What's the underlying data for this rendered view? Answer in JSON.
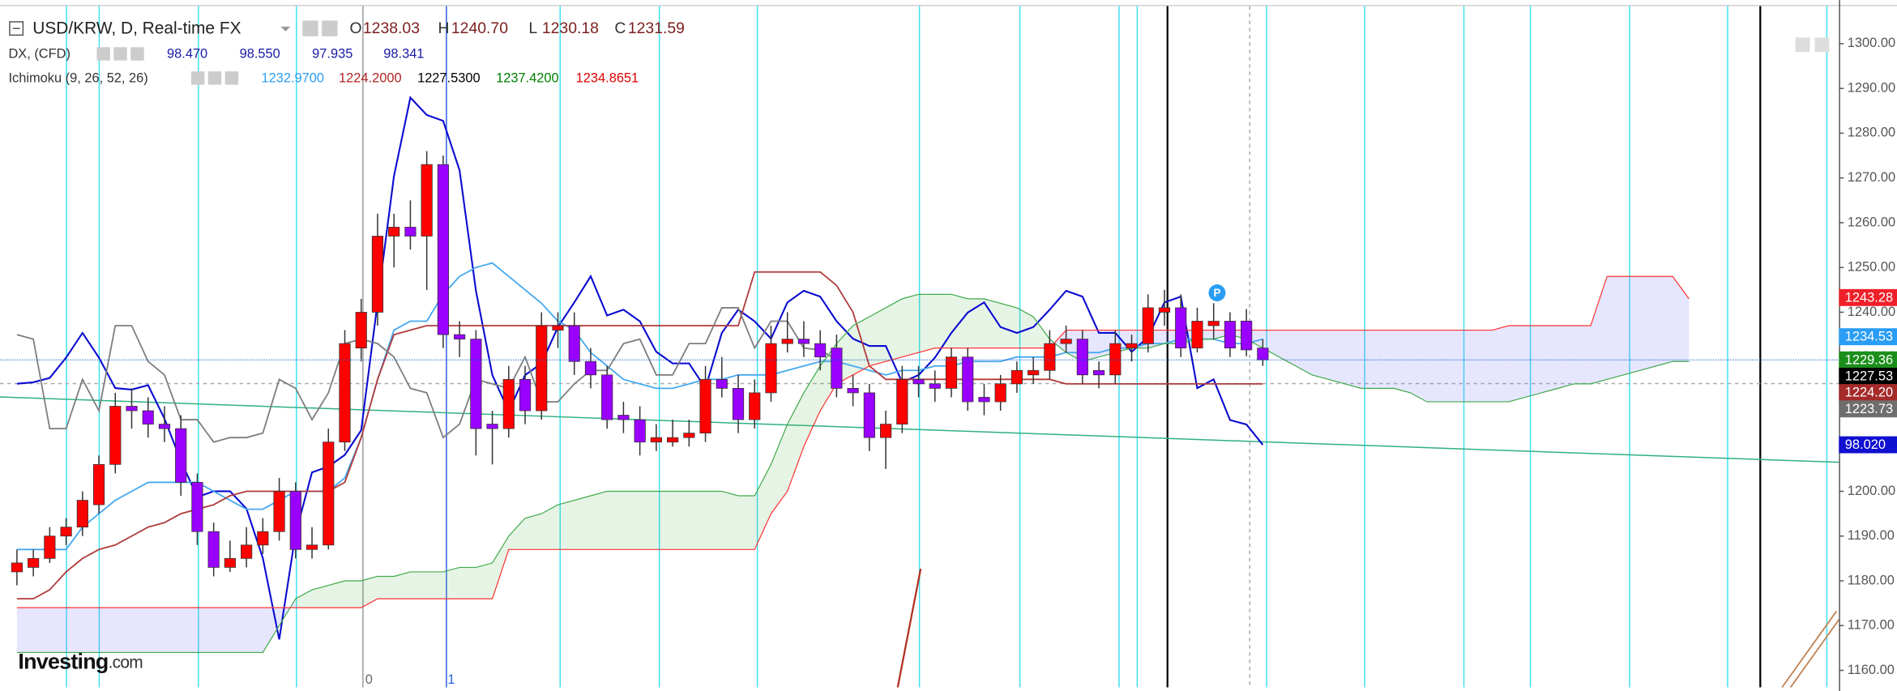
{
  "chart_data": {
    "type": "candlestick",
    "title": "USD/KRW, D, Real-time FX",
    "ohlc_keys": [
      "O",
      "H",
      "L",
      "C"
    ],
    "ohlc_values": [
      "1238.03",
      "1240.70",
      "1230.18",
      "1231.59"
    ],
    "indicators": [
      {
        "name": "DX, (CFD)",
        "values": [
          "98.470",
          "98.550",
          "97.935",
          "98.341"
        ],
        "colors": [
          "#1a1aa6",
          "#1a1aa6",
          "#1a1aa6",
          "#1a1aa6"
        ]
      },
      {
        "name": "Ichimoku (9, 26, 52, 26)",
        "values": [
          "1232.9700",
          "1224.2000",
          "1227.5300",
          "1237.4200",
          "1234.8651"
        ],
        "colors": [
          "#2a9df4",
          "#b22222",
          "#000000",
          "#008000",
          "#e00000"
        ]
      }
    ],
    "up_color": "#ff0000",
    "down_color": "#9900ff",
    "candles": [
      {
        "o": 1182,
        "h": 1187,
        "l": 1179,
        "c": 1184
      },
      {
        "o": 1183,
        "h": 1187,
        "l": 1181,
        "c": 1185
      },
      {
        "o": 1185,
        "h": 1192,
        "l": 1184,
        "c": 1190
      },
      {
        "o": 1190,
        "h": 1194,
        "l": 1188,
        "c": 1192
      },
      {
        "o": 1192,
        "h": 1200,
        "l": 1190,
        "c": 1198
      },
      {
        "o": 1197,
        "h": 1208,
        "l": 1195,
        "c": 1206
      },
      {
        "o": 1206,
        "h": 1222,
        "l": 1204,
        "c": 1219
      },
      {
        "o": 1219,
        "h": 1223,
        "l": 1214,
        "c": 1218
      },
      {
        "o": 1218,
        "h": 1221,
        "l": 1212,
        "c": 1215
      },
      {
        "o": 1215,
        "h": 1219,
        "l": 1211,
        "c": 1214
      },
      {
        "o": 1214,
        "h": 1217,
        "l": 1199,
        "c": 1202
      },
      {
        "o": 1202,
        "h": 1204,
        "l": 1188,
        "c": 1191
      },
      {
        "o": 1191,
        "h": 1193,
        "l": 1181,
        "c": 1183
      },
      {
        "o": 1183,
        "h": 1189,
        "l": 1182,
        "c": 1185
      },
      {
        "o": 1185,
        "h": 1192,
        "l": 1183,
        "c": 1188
      },
      {
        "o": 1188,
        "h": 1194,
        "l": 1186,
        "c": 1191
      },
      {
        "o": 1191,
        "h": 1203,
        "l": 1189,
        "c": 1200
      },
      {
        "o": 1200,
        "h": 1202,
        "l": 1185,
        "c": 1187
      },
      {
        "o": 1187,
        "h": 1192,
        "l": 1185,
        "c": 1188
      },
      {
        "o": 1188,
        "h": 1214,
        "l": 1187,
        "c": 1211
      },
      {
        "o": 1211,
        "h": 1236,
        "l": 1209,
        "c": 1233
      },
      {
        "o": 1232,
        "h": 1243,
        "l": 1229,
        "c": 1240
      },
      {
        "o": 1240,
        "h": 1262,
        "l": 1237,
        "c": 1257
      },
      {
        "o": 1257,
        "h": 1262,
        "l": 1250,
        "c": 1259
      },
      {
        "o": 1259,
        "h": 1265,
        "l": 1254,
        "c": 1257
      },
      {
        "o": 1257,
        "h": 1276,
        "l": 1245,
        "c": 1273
      },
      {
        "o": 1273,
        "h": 1275,
        "l": 1232,
        "c": 1235
      },
      {
        "o": 1235,
        "h": 1238,
        "l": 1230,
        "c": 1234
      },
      {
        "o": 1234,
        "h": 1236,
        "l": 1208,
        "c": 1214
      },
      {
        "o": 1215,
        "h": 1218,
        "l": 1206,
        "c": 1214
      },
      {
        "o": 1214,
        "h": 1228,
        "l": 1212,
        "c": 1225
      },
      {
        "o": 1225,
        "h": 1228,
        "l": 1215,
        "c": 1218
      },
      {
        "o": 1218,
        "h": 1240,
        "l": 1216,
        "c": 1237
      },
      {
        "o": 1236,
        "h": 1240,
        "l": 1232,
        "c": 1237
      },
      {
        "o": 1237,
        "h": 1240,
        "l": 1226,
        "c": 1229
      },
      {
        "o": 1229,
        "h": 1232,
        "l": 1223,
        "c": 1226
      },
      {
        "o": 1226,
        "h": 1228,
        "l": 1214,
        "c": 1216
      },
      {
        "o": 1217,
        "h": 1220,
        "l": 1213,
        "c": 1216
      },
      {
        "o": 1216,
        "h": 1219,
        "l": 1208,
        "c": 1211
      },
      {
        "o": 1211,
        "h": 1215,
        "l": 1209,
        "c": 1212
      },
      {
        "o": 1211,
        "h": 1216,
        "l": 1210,
        "c": 1212
      },
      {
        "o": 1212,
        "h": 1216,
        "l": 1210,
        "c": 1213
      },
      {
        "o": 1213,
        "h": 1228,
        "l": 1211,
        "c": 1225
      },
      {
        "o": 1225,
        "h": 1230,
        "l": 1221,
        "c": 1223
      },
      {
        "o": 1223,
        "h": 1226,
        "l": 1213,
        "c": 1216
      },
      {
        "o": 1216,
        "h": 1225,
        "l": 1214,
        "c": 1222
      },
      {
        "o": 1222,
        "h": 1237,
        "l": 1220,
        "c": 1233
      },
      {
        "o": 1233,
        "h": 1240,
        "l": 1231,
        "c": 1234
      },
      {
        "o": 1234,
        "h": 1238,
        "l": 1230,
        "c": 1233
      },
      {
        "o": 1233,
        "h": 1236,
        "l": 1227,
        "c": 1230
      },
      {
        "o": 1232,
        "h": 1235,
        "l": 1221,
        "c": 1223
      },
      {
        "o": 1223,
        "h": 1226,
        "l": 1219,
        "c": 1222
      },
      {
        "o": 1222,
        "h": 1224,
        "l": 1209,
        "c": 1212
      },
      {
        "o": 1212,
        "h": 1218,
        "l": 1205,
        "c": 1215
      },
      {
        "o": 1215,
        "h": 1228,
        "l": 1213,
        "c": 1225
      },
      {
        "o": 1225,
        "h": 1228,
        "l": 1221,
        "c": 1224
      },
      {
        "o": 1224,
        "h": 1227,
        "l": 1220,
        "c": 1223
      },
      {
        "o": 1223,
        "h": 1232,
        "l": 1221,
        "c": 1230
      },
      {
        "o": 1230,
        "h": 1232,
        "l": 1218,
        "c": 1220
      },
      {
        "o": 1221,
        "h": 1224,
        "l": 1217,
        "c": 1220
      },
      {
        "o": 1220,
        "h": 1226,
        "l": 1218,
        "c": 1224
      },
      {
        "o": 1224,
        "h": 1229,
        "l": 1222,
        "c": 1227
      },
      {
        "o": 1226,
        "h": 1230,
        "l": 1224,
        "c": 1227
      },
      {
        "o": 1227,
        "h": 1236,
        "l": 1225,
        "c": 1233
      },
      {
        "o": 1233,
        "h": 1237,
        "l": 1231,
        "c": 1234
      },
      {
        "o": 1234,
        "h": 1236,
        "l": 1224,
        "c": 1226
      },
      {
        "o": 1227,
        "h": 1229,
        "l": 1223,
        "c": 1226
      },
      {
        "o": 1226,
        "h": 1236,
        "l": 1224,
        "c": 1233
      },
      {
        "o": 1232,
        "h": 1235,
        "l": 1229,
        "c": 1233
      },
      {
        "o": 1233,
        "h": 1244,
        "l": 1231,
        "c": 1241
      },
      {
        "o": 1240,
        "h": 1245,
        "l": 1237,
        "c": 1241
      },
      {
        "o": 1241,
        "h": 1244,
        "l": 1230,
        "c": 1232
      },
      {
        "o": 1232,
        "h": 1241,
        "l": 1231,
        "c": 1238
      },
      {
        "o": 1237,
        "h": 1242,
        "l": 1234,
        "c": 1238
      },
      {
        "o": 1238,
        "h": 1240,
        "l": 1230,
        "c": 1232
      },
      {
        "o": 1238.03,
        "h": 1240.7,
        "l": 1230.18,
        "c": 1231.59
      },
      {
        "o": 1232,
        "h": 1234,
        "l": 1228,
        "c": 1229.36
      }
    ],
    "series": [
      {
        "color": "#0a0ad0",
        "axis": "y2",
        "values": [
          98.44,
          98.45,
          98.48,
          98.62,
          98.79,
          98.62,
          98.41,
          98.4,
          98.43,
          98.2,
          97.91,
          97.66,
          97.7,
          97.7,
          97.58,
          97.24,
          96.68,
          97.41,
          97.83,
          97.87,
          97.95,
          98.12,
          99.0,
          99.87,
          100.41,
          100.29,
          100.25,
          99.91,
          99.08,
          98.5,
          98.25,
          98.5,
          98.58,
          98.83,
          99.0,
          99.18,
          98.91,
          98.95,
          98.87,
          98.66,
          98.58,
          98.58,
          98.41,
          98.79,
          98.95,
          98.87,
          98.75,
          99.0,
          99.08,
          99.04,
          98.87,
          98.75,
          98.7,
          98.7,
          98.45,
          98.5,
          98.62,
          98.79,
          98.93,
          99.0,
          98.83,
          98.79,
          98.83,
          98.95,
          99.08,
          99.04,
          98.79,
          98.79,
          98.66,
          98.76,
          99.0,
          99.04,
          98.41,
          98.47,
          98.19,
          98.16,
          98.02
        ]
      },
      {
        "color": "#45a8f0",
        "values": [
          1187,
          1187,
          1187,
          1187,
          1192,
          1195,
          1198,
          1200,
          1202,
          1202,
          1202,
          1202,
          1200,
          1198,
          1196,
          1196,
          1198,
          1200,
          1200,
          1200,
          1203,
          1212,
          1225,
          1236,
          1238,
          1238,
          1244,
          1248,
          1250,
          1251,
          1248,
          1245,
          1242,
          1238,
          1236,
          1231,
          1228,
          1225,
          1224,
          1223,
          1223,
          1224,
          1225,
          1225,
          1226,
          1226,
          1226,
          1227,
          1228,
          1229,
          1229,
          1228,
          1227,
          1226,
          1227,
          1227,
          1228,
          1228,
          1229,
          1229,
          1229,
          1230,
          1230,
          1230,
          1231,
          1231,
          1231,
          1232,
          1232,
          1233,
          1233,
          1234,
          1234,
          1234,
          1233,
          1233,
          1234
        ]
      },
      {
        "color": "#b03a3a",
        "values": [
          1176,
          1176,
          1178,
          1182,
          1185,
          1187,
          1188,
          1190,
          1192,
          1193,
          1195,
          1196,
          1197,
          1199,
          1200,
          1200,
          1200,
          1200,
          1200,
          1200,
          1202,
          1212,
          1225,
          1235,
          1236,
          1237,
          1237,
          1237,
          1237,
          1237,
          1237,
          1237,
          1237,
          1237,
          1237,
          1237,
          1237,
          1237,
          1237,
          1237,
          1237,
          1237,
          1237,
          1237,
          1237,
          1249,
          1249,
          1249,
          1249,
          1249,
          1246,
          1240,
          1228,
          1225,
          1225,
          1225,
          1225,
          1225,
          1225,
          1225,
          1225,
          1225,
          1225,
          1225,
          1224,
          1224,
          1224,
          1224,
          1224,
          1224,
          1224,
          1224,
          1224,
          1224,
          1224,
          1224,
          1224
        ]
      },
      {
        "color": "#7d7d7d",
        "values": [
          1235,
          1234,
          1214,
          1214,
          1225,
          1218,
          1237,
          1237,
          1229,
          1226,
          1216,
          1216,
          1211,
          1212,
          1212,
          1213,
          1225,
          1223,
          1216,
          1222,
          1233,
          1234,
          1233,
          1230,
          1223,
          1222,
          1212,
          1215,
          1225,
          1224,
          1223,
          1230,
          1220,
          1220,
          1224,
          1227,
          1227,
          1233,
          1234,
          1226,
          1226,
          1233,
          1233,
          1241,
          1241,
          1232,
          1238,
          1238,
          1232,
          1231.59,
          1229.36
        ]
      },
      {
        "color": "#3faa4a",
        "cloud": "a",
        "values": [
          1164,
          1164,
          1164,
          1164,
          1164,
          1164,
          1164,
          1164,
          1164,
          1164,
          1164,
          1164,
          1164,
          1164,
          1164,
          1164,
          1170,
          1176,
          1178,
          1179,
          1180,
          1180,
          1181,
          1181,
          1182,
          1182,
          1182,
          1183,
          1183,
          1184,
          1190,
          1194,
          1195,
          1197,
          1198,
          1199,
          1200,
          1200,
          1200,
          1200,
          1200,
          1200,
          1200,
          1200,
          1199,
          1199,
          1206,
          1215,
          1222,
          1228,
          1233,
          1237,
          1239,
          1241,
          1243,
          1244,
          1244,
          1244,
          1243,
          1243,
          1242,
          1241,
          1239,
          1234,
          1231,
          1229,
          1230,
          1231,
          1232,
          1232,
          1233,
          1233,
          1234,
          1234,
          1235,
          1234,
          1232,
          1230,
          1228,
          1226,
          1225,
          1224,
          1223,
          1223,
          1223,
          1222,
          1220,
          1220,
          1220,
          1220,
          1220,
          1220,
          1221,
          1222,
          1223,
          1224,
          1224,
          1225,
          1226,
          1227,
          1228,
          1229,
          1229
        ]
      },
      {
        "color": "#ff3030",
        "cloud": "b",
        "values": [
          1174,
          1174,
          1174,
          1174,
          1174,
          1174,
          1174,
          1174,
          1174,
          1174,
          1174,
          1174,
          1174,
          1174,
          1174,
          1174,
          1174,
          1174,
          1174,
          1174,
          1174,
          1174,
          1176,
          1176,
          1176,
          1176,
          1176,
          1176,
          1176,
          1176,
          1187,
          1187,
          1187,
          1187,
          1187,
          1187,
          1187,
          1187,
          1187,
          1187,
          1187,
          1187,
          1187,
          1187,
          1187,
          1187,
          1195,
          1200,
          1210,
          1218,
          1224,
          1226,
          1228,
          1229,
          1230,
          1231,
          1232,
          1232,
          1232,
          1232,
          1232,
          1232,
          1232,
          1232,
          1236,
          1236,
          1236,
          1236,
          1236,
          1236,
          1236,
          1236,
          1236,
          1236,
          1236,
          1236,
          1236,
          1236,
          1236,
          1236,
          1236,
          1236,
          1236,
          1236,
          1236,
          1236,
          1236,
          1236,
          1236,
          1236,
          1236,
          1237,
          1237,
          1237,
          1237,
          1237,
          1237,
          1248,
          1248,
          1248,
          1248,
          1248,
          1243
        ]
      }
    ],
    "cloud_up_color": "rgba(76,175,80,0.14)",
    "cloud_down_color": "rgba(130,130,255,0.2)",
    "ylim": [
      1156.2,
      1308.4
    ],
    "yticks": [
      {
        "value": 1160,
        "label": "1160.00"
      },
      {
        "value": 1170,
        "label": "1170.00"
      },
      {
        "value": 1180,
        "label": "1180.00"
      },
      {
        "value": 1190,
        "label": "1190.00"
      },
      {
        "value": 1200,
        "label": "1200.00"
      },
      {
        "value": 1210,
        "label": "1210.00"
      },
      {
        "value": 1220,
        "label": "1220.00"
      },
      {
        "value": 1230,
        "label": "1230.00"
      },
      {
        "value": 1240,
        "label": "1240.00"
      },
      {
        "value": 1250,
        "label": "1250.00"
      },
      {
        "value": 1260,
        "label": "1260.00"
      },
      {
        "value": 1270,
        "label": "1270.00"
      },
      {
        "value": 1280,
        "label": "1280.00"
      },
      {
        "value": 1290,
        "label": "1290.00"
      },
      {
        "value": 1300,
        "label": "1300.00"
      }
    ],
    "y2lim": [
      96.35,
      101.04
    ],
    "price_labels": [
      {
        "value": 1243.28,
        "color": "#f0202a"
      },
      {
        "value": 1234.53,
        "color": "#2a9df4"
      },
      {
        "value": 1229.36,
        "color": "#1b8f1b"
      },
      {
        "value": 1223.73,
        "color": "#6e6e6e"
      },
      {
        "value": 1227.53,
        "color": "#000000"
      },
      {
        "value": 1224.2,
        "label": "1224.20",
        "color": "#a52a2a"
      },
      {
        "value": 98.02,
        "label": "98.020",
        "color": "#1010d0",
        "axis": "y2"
      }
    ],
    "x_labels": [
      "0",
      "1"
    ],
    "logo": [
      "Investing",
      ".com"
    ]
  }
}
